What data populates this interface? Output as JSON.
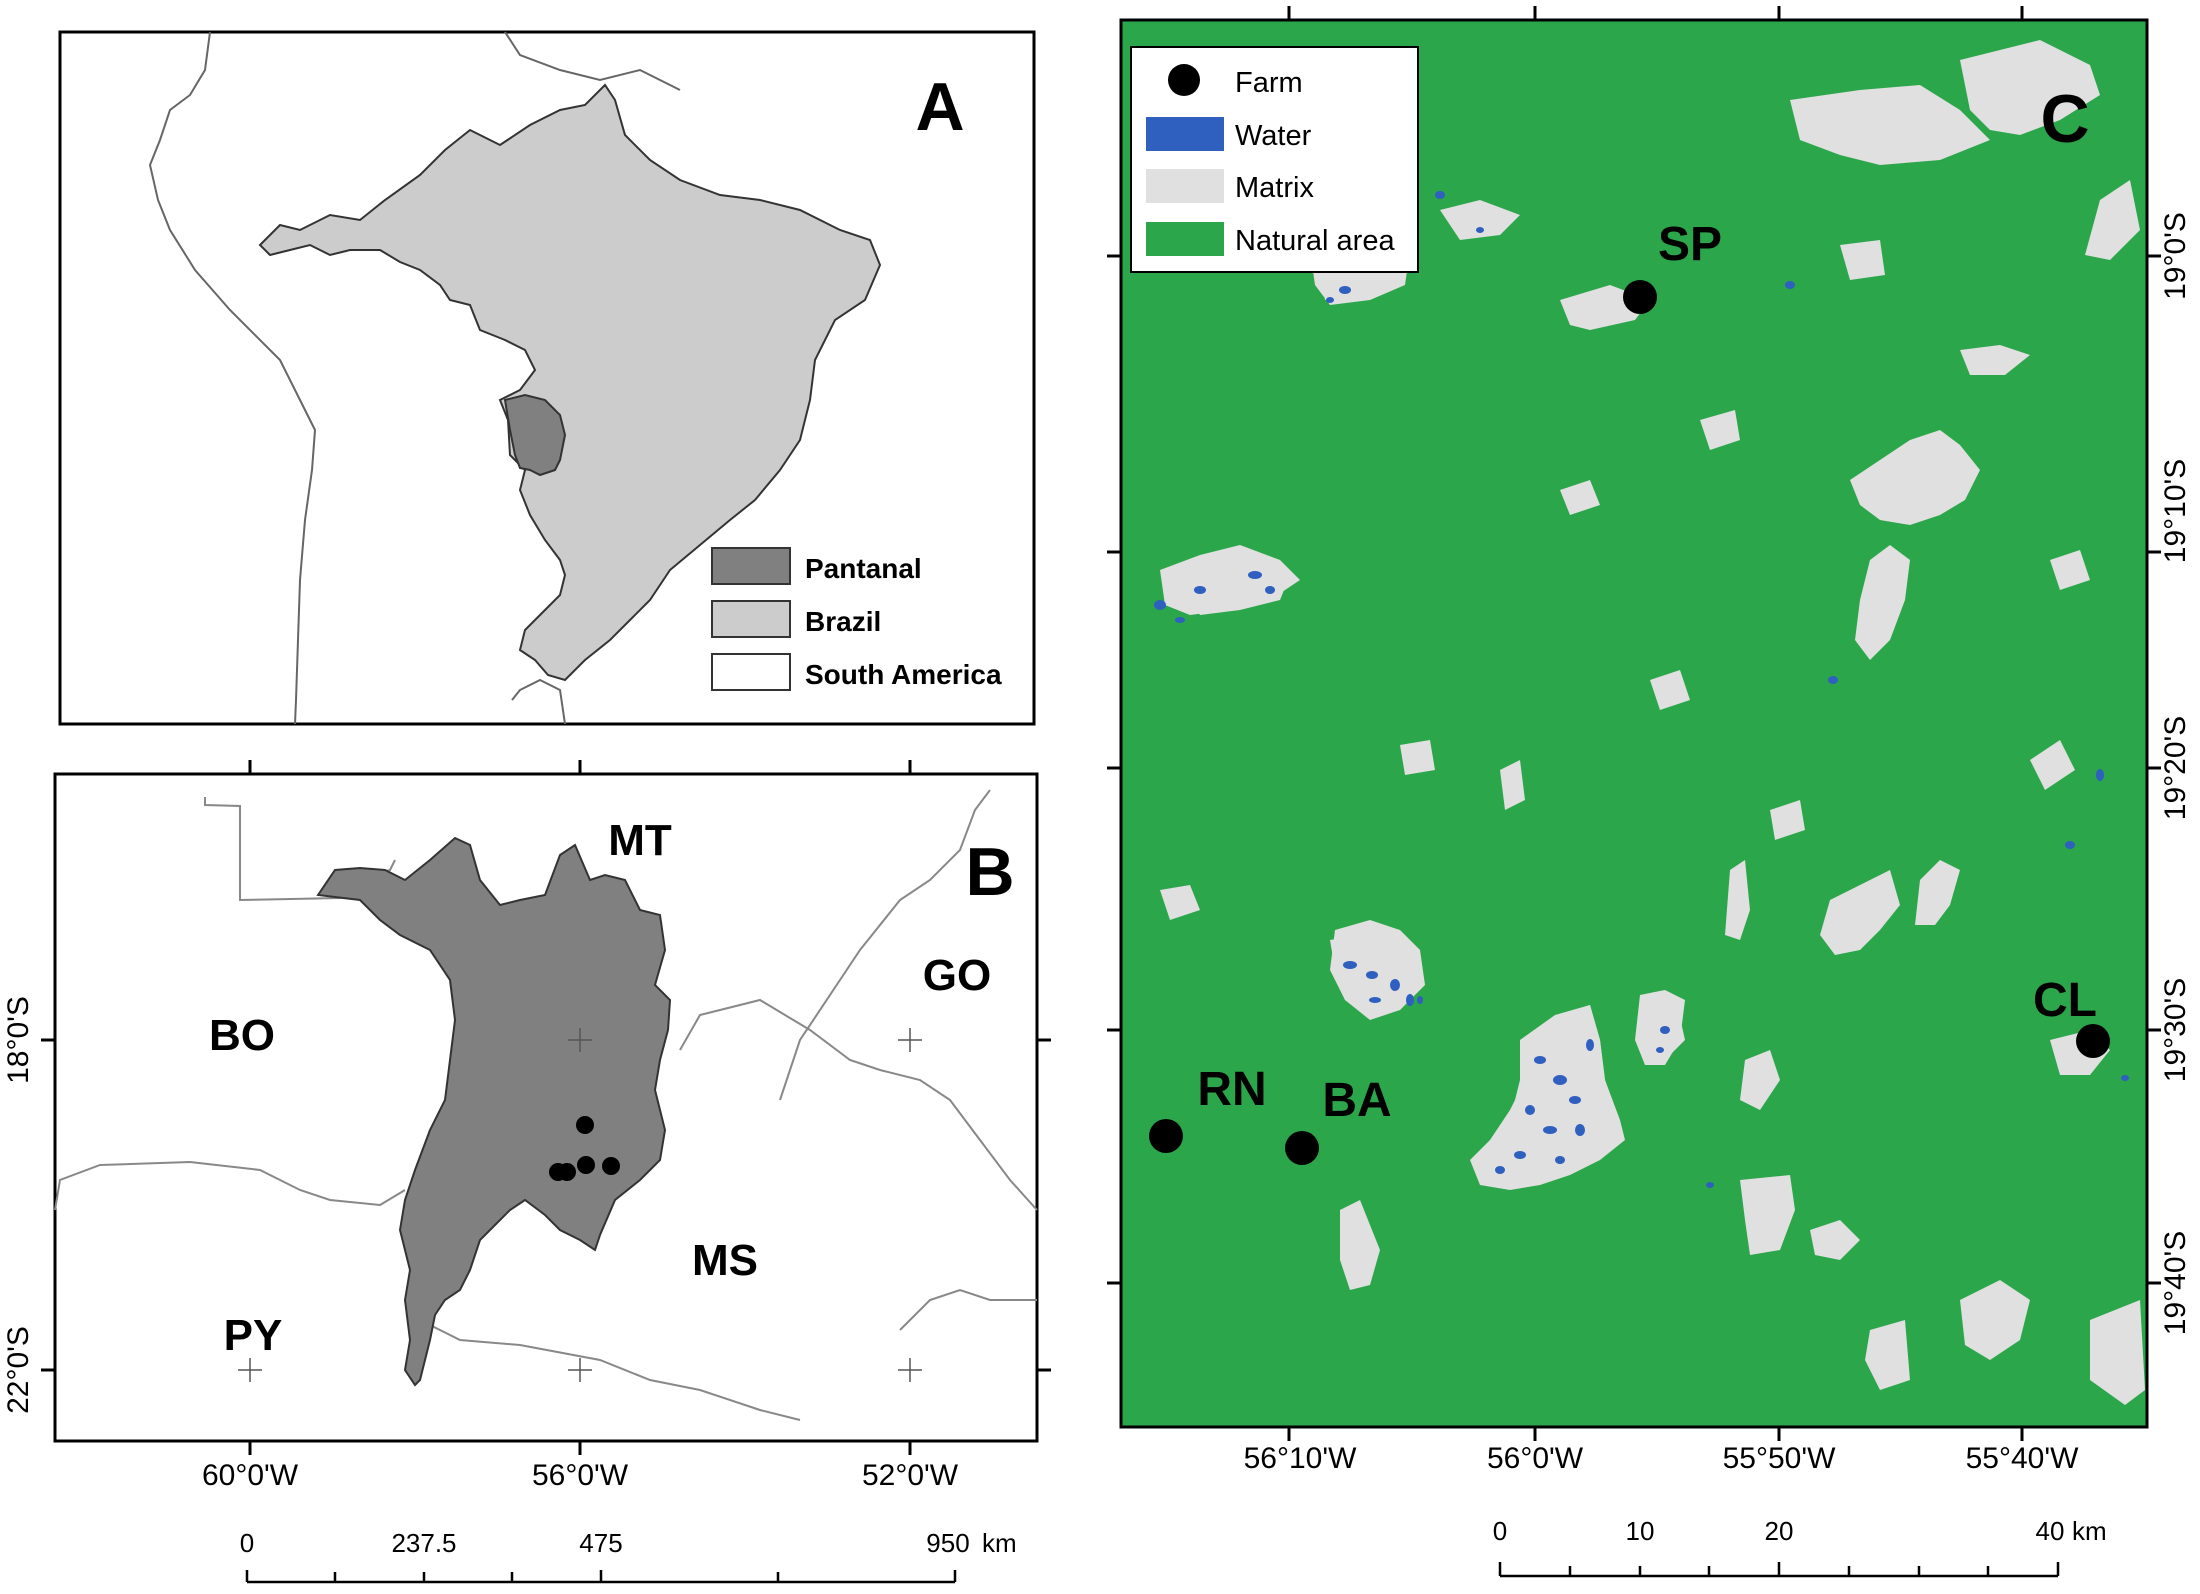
{
  "panel_a": {
    "letter": "A",
    "legend": [
      {
        "label": "Pantanal",
        "color": "#808080"
      },
      {
        "label": "Brazil",
        "color": "#cccccc"
      },
      {
        "label": "South America",
        "color": "#ffffff"
      }
    ]
  },
  "panel_b": {
    "letter": "B",
    "regions": [
      "MT",
      "BO",
      "GO",
      "MS",
      "PY"
    ],
    "lat_labels": [
      "18°0'S",
      "22°0'S"
    ],
    "lon_labels": [
      "60°0'W",
      "56°0'W",
      "52°0'W"
    ],
    "scale": {
      "ticks": [
        "0",
        "237.5",
        "475",
        "950"
      ],
      "unit": "km"
    }
  },
  "panel_c": {
    "letter": "C",
    "legend": [
      {
        "label": "Farm",
        "color": "#000000",
        "symbol": "dot"
      },
      {
        "label": "Water",
        "color": "#2f5fbf",
        "symbol": "box"
      },
      {
        "label": "Matrix",
        "color": "#e0e0e0",
        "symbol": "box"
      },
      {
        "label": "Natural area",
        "color": "#2ca64a",
        "symbol": "box"
      }
    ],
    "farms": [
      "SP",
      "RN",
      "BA",
      "CL"
    ],
    "lat_labels": [
      "19°0'S",
      "19°10'S",
      "19°20'S",
      "19°30'S",
      "19°40'S"
    ],
    "lon_labels": [
      "56°10'W",
      "56°0'W",
      "55°50'W",
      "55°40'W"
    ],
    "scale": {
      "ticks": [
        "0",
        "10",
        "20",
        "40"
      ],
      "unit": "km"
    }
  },
  "colors": {
    "pantanal": "#808080",
    "brazil": "#cccccc",
    "natural": "#2ca64a",
    "matrix": "#e0e0e0",
    "water": "#2f5fbf"
  }
}
